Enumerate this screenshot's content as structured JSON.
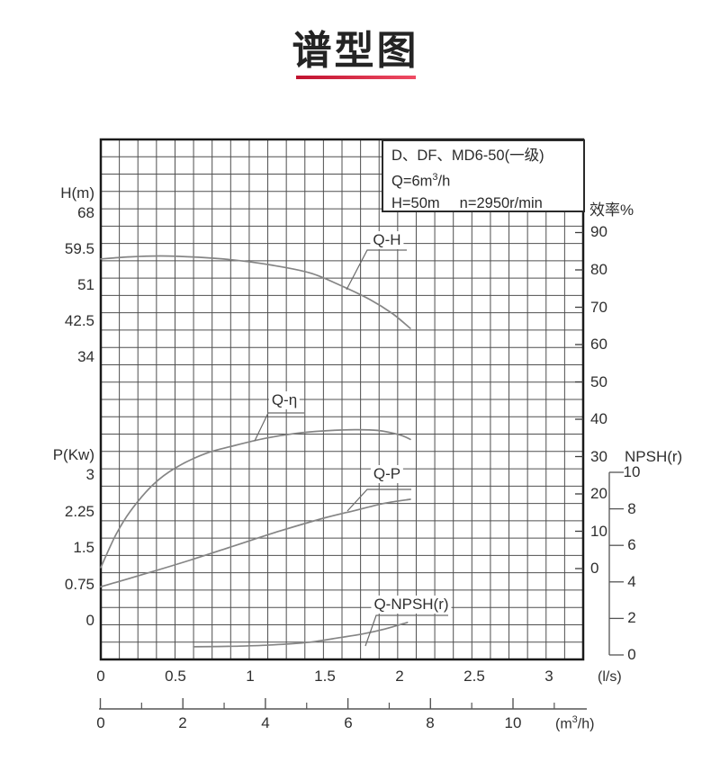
{
  "page": {
    "title": "谱型图",
    "accent_color": "#d41e3c"
  },
  "info_box": {
    "line1": "D、DF、MD6-50(一级)",
    "line2_prefix": "Q=6m",
    "line2_sup": "3",
    "line2_suffix": "/h",
    "line3_left": "H=50m",
    "line3_right": "n=2950r/min"
  },
  "chart_data": {
    "type": "line",
    "title": "谱型图",
    "grid": {
      "on": true,
      "columns": 26,
      "rows": 30
    },
    "x_axis": {
      "unit_ls": "(l/s)",
      "unit_m3h_prefix": "(m",
      "unit_m3h_sup": "3",
      "unit_m3h_suffix": "/h)",
      "ticks_ls": [
        "0",
        "0.5",
        "1",
        "1.5",
        "2",
        "2.5",
        "3"
      ],
      "ticks_ls_values": [
        0,
        0.5,
        1,
        1.5,
        2,
        2.5,
        3
      ],
      "ticks_m3h": [
        "0",
        "2",
        "4",
        "6",
        "8",
        "10"
      ],
      "ticks_m3h_values": [
        0,
        2,
        4,
        6,
        8,
        10
      ],
      "minor_ticks_m3h": [
        1,
        3,
        5,
        7,
        9,
        11
      ],
      "range_ls": [
        0,
        3.25
      ],
      "range_m3h": [
        0,
        11.7
      ]
    },
    "y_axes": {
      "head": {
        "label": "H(m)",
        "ticks": [
          "68",
          "59.5",
          "51",
          "42.5",
          "34"
        ],
        "tick_values": [
          68,
          59.5,
          51,
          42.5,
          34
        ]
      },
      "power": {
        "label": "P(Kw)",
        "ticks": [
          "3",
          "2.25",
          "1.5",
          "0.75",
          "0"
        ],
        "tick_values": [
          3,
          2.25,
          1.5,
          0.75,
          0
        ]
      },
      "efficiency": {
        "label": "效率%",
        "ticks": [
          "90",
          "80",
          "70",
          "60",
          "50",
          "40",
          "30",
          "20",
          "10",
          "0"
        ],
        "tick_values": [
          90,
          80,
          70,
          60,
          50,
          40,
          30,
          20,
          10,
          0
        ]
      },
      "npsh": {
        "label": "NPSH(r)",
        "ticks": [
          "10",
          "8",
          "6",
          "4",
          "2",
          "0"
        ],
        "tick_values": [
          10,
          8,
          6,
          4,
          2,
          0
        ]
      }
    },
    "series": [
      {
        "name": "Q-H",
        "axis": "head",
        "unit": "m",
        "points": [
          [
            0,
            57.2
          ],
          [
            0.2,
            57.7
          ],
          [
            0.4,
            57.9
          ],
          [
            0.65,
            57.6
          ],
          [
            0.9,
            56.9
          ],
          [
            1.15,
            55.7
          ],
          [
            1.4,
            53.9
          ],
          [
            1.6,
            51.0
          ],
          [
            1.8,
            47.6
          ],
          [
            1.95,
            44.3
          ],
          [
            2.07,
            40.8
          ]
        ]
      },
      {
        "name": "Q-η",
        "axis": "efficiency",
        "unit": "%",
        "points": [
          [
            0,
            0.3
          ],
          [
            0.1,
            9
          ],
          [
            0.2,
            15.5
          ],
          [
            0.35,
            22.5
          ],
          [
            0.5,
            27
          ],
          [
            0.7,
            30.8
          ],
          [
            0.9,
            33
          ],
          [
            1.1,
            34.9
          ],
          [
            1.3,
            36.2
          ],
          [
            1.5,
            36.9
          ],
          [
            1.7,
            37.2
          ],
          [
            1.85,
            37
          ],
          [
            2.0,
            35.8
          ],
          [
            2.07,
            34.6
          ]
        ]
      },
      {
        "name": "Q-P",
        "axis": "power",
        "unit": "Kw",
        "points": [
          [
            0,
            0.7
          ],
          [
            0.3,
            0.97
          ],
          [
            0.6,
            1.25
          ],
          [
            0.9,
            1.55
          ],
          [
            1.2,
            1.85
          ],
          [
            1.5,
            2.12
          ],
          [
            1.7,
            2.27
          ],
          [
            1.9,
            2.42
          ],
          [
            2.07,
            2.5
          ]
        ]
      },
      {
        "name": "Q-NPSH(r)",
        "axis": "npsh",
        "unit": "m",
        "points": [
          [
            0.62,
            0.45
          ],
          [
            0.9,
            0.48
          ],
          [
            1.15,
            0.55
          ],
          [
            1.4,
            0.7
          ],
          [
            1.6,
            0.95
          ],
          [
            1.75,
            1.15
          ],
          [
            1.9,
            1.42
          ],
          [
            2.05,
            1.78
          ]
        ]
      }
    ],
    "rated_point_text": {
      "q": "6m3/h",
      "h": "50m",
      "n": "2950r/min"
    },
    "colors": {
      "grid": "#4f4f4f",
      "border": "#1a1a1a",
      "curve": "#858585",
      "text": "#2e2e2e"
    }
  }
}
